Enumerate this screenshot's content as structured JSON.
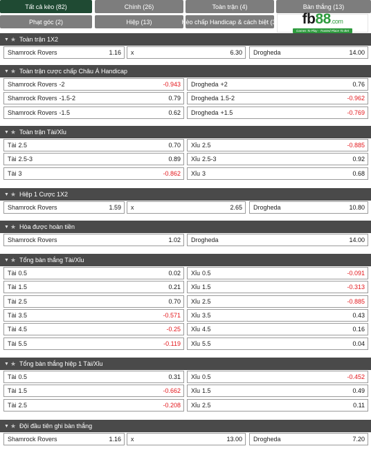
{
  "tabs": [
    {
      "label": "Tất cả kèo (82)"
    },
    {
      "label": "Chính (26)"
    },
    {
      "label": "Toàn trận (4)"
    },
    {
      "label": "Bàn thắng (13)"
    },
    {
      "label": "Phạt góc (2)"
    },
    {
      "label": "Hiệp (13)"
    },
    {
      "label": "Kèo chấp Handicap & cách biệt (3)"
    }
  ],
  "logo": {
    "fb": "fb",
    "num": "88",
    "com": ".com",
    "tagline": "Games To Play - Trusted Place To Bet"
  },
  "colors": {
    "active_tab": "#1f4a33",
    "tab": "#7d7d7d",
    "section_header": "#4a4a4a",
    "negative": "#e3161b"
  },
  "sections": [
    {
      "title": "Toàn trận 1X2",
      "rows": [
        [
          {
            "name": "Shamrock Rovers",
            "odd": "1.16"
          },
          {
            "name": "x",
            "odd": "6.30"
          },
          {
            "name": "Drogheda",
            "odd": "14.00"
          }
        ]
      ]
    },
    {
      "title": "Toàn trận cược chấp Châu Á Handicap",
      "rows": [
        [
          {
            "name": "Shamrock Rovers",
            "hcap": "-2",
            "odd": "-0.943"
          },
          {
            "name": "Drogheda",
            "hcap": "+2",
            "odd": "0.76"
          }
        ],
        [
          {
            "name": "Shamrock Rovers",
            "hcap": "-1.5-2",
            "odd": "0.79"
          },
          {
            "name": "Drogheda",
            "hcap": "1.5-2",
            "odd": "-0.962"
          }
        ],
        [
          {
            "name": "Shamrock Rovers",
            "hcap": "-1.5",
            "odd": "0.62"
          },
          {
            "name": "Drogheda",
            "hcap": "+1.5",
            "odd": "-0.769"
          }
        ]
      ]
    },
    {
      "title": "Toàn trận Tài/Xỉu",
      "rows": [
        [
          {
            "name": "Tài",
            "hcap": "2.5",
            "odd": "0.70"
          },
          {
            "name": "Xỉu",
            "hcap": "2.5",
            "odd": "-0.885"
          }
        ],
        [
          {
            "name": "Tài",
            "hcap": "2.5-3",
            "odd": "0.89"
          },
          {
            "name": "Xỉu",
            "hcap": "2.5-3",
            "odd": "0.92"
          }
        ],
        [
          {
            "name": "Tài",
            "hcap": "3",
            "odd": "-0.862"
          },
          {
            "name": "Xỉu",
            "hcap": "3",
            "odd": "0.68"
          }
        ]
      ]
    },
    {
      "title": "Hiệp 1 Cược 1X2",
      "rows": [
        [
          {
            "name": "Shamrock Rovers",
            "odd": "1.59"
          },
          {
            "name": "x",
            "odd": "2.65"
          },
          {
            "name": "Drogheda",
            "odd": "10.80"
          }
        ]
      ]
    },
    {
      "title": "Hòa được hoàn tiền",
      "rows": [
        [
          {
            "name": "Shamrock Rovers",
            "odd": "1.02"
          },
          {
            "name": "Drogheda",
            "odd": "14.00"
          }
        ]
      ]
    },
    {
      "title": "Tổng bàn thắng Tài/Xỉu",
      "rows": [
        [
          {
            "name": "Tài",
            "hcap": "0.5",
            "odd": "0.02"
          },
          {
            "name": "Xỉu",
            "hcap": "0.5",
            "odd": "-0.091"
          }
        ],
        [
          {
            "name": "Tài",
            "hcap": "1.5",
            "odd": "0.21"
          },
          {
            "name": "Xỉu",
            "hcap": "1.5",
            "odd": "-0.313"
          }
        ],
        [
          {
            "name": "Tài",
            "hcap": "2.5",
            "odd": "0.70"
          },
          {
            "name": "Xỉu",
            "hcap": "2.5",
            "odd": "-0.885"
          }
        ],
        [
          {
            "name": "Tài",
            "hcap": "3.5",
            "odd": "-0.571"
          },
          {
            "name": "Xỉu",
            "hcap": "3.5",
            "odd": "0.43"
          }
        ],
        [
          {
            "name": "Tài",
            "hcap": "4.5",
            "odd": "-0.25"
          },
          {
            "name": "Xỉu",
            "hcap": "4.5",
            "odd": "0.16"
          }
        ],
        [
          {
            "name": "Tài",
            "hcap": "5.5",
            "odd": "-0.119"
          },
          {
            "name": "Xỉu",
            "hcap": "5.5",
            "odd": "0.04"
          }
        ]
      ]
    },
    {
      "title": "Tổng bàn thắng hiệp 1 Tài/Xỉu",
      "rows": [
        [
          {
            "name": "Tài",
            "hcap": "0.5",
            "odd": "0.31"
          },
          {
            "name": "Xỉu",
            "hcap": "0.5",
            "odd": "-0.452"
          }
        ],
        [
          {
            "name": "Tài",
            "hcap": "1.5",
            "odd": "-0.662"
          },
          {
            "name": "Xỉu",
            "hcap": "1.5",
            "odd": "0.49"
          }
        ],
        [
          {
            "name": "Tài",
            "hcap": "2.5",
            "odd": "-0.208"
          },
          {
            "name": "Xỉu",
            "hcap": "2.5",
            "odd": "0.11"
          }
        ]
      ]
    },
    {
      "title": "Đội đầu tiên ghi bàn thắng",
      "rows": [
        [
          {
            "name": "Shamrock Rovers",
            "odd": "1.16"
          },
          {
            "name": "x",
            "odd": "13.00"
          },
          {
            "name": "Drogheda",
            "odd": "7.20"
          }
        ]
      ]
    }
  ]
}
